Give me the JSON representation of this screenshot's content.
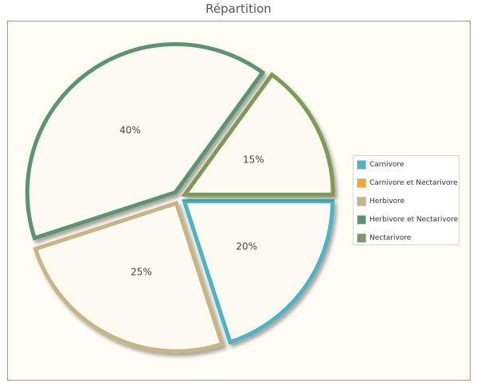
{
  "chart_data": {
    "type": "pie",
    "title": "Répartition",
    "slices": [
      {
        "name": "Carnivore",
        "value": 20,
        "label": "20%",
        "color": "#4eb3c7"
      },
      {
        "name": "Carnivore et Nectarivore",
        "value": 0,
        "label": "",
        "color": "#f0a830"
      },
      {
        "name": "Herbivore",
        "value": 25,
        "label": "25%",
        "color": "#c9b486"
      },
      {
        "name": "Herbivore et Nectarivore",
        "value": 40,
        "label": "40%",
        "color": "#5c9473"
      },
      {
        "name": "Nectarivore",
        "value": 15,
        "label": "15%",
        "color": "#7e9a56"
      }
    ],
    "legend_position": "right",
    "background_color": "#fefcf3"
  }
}
